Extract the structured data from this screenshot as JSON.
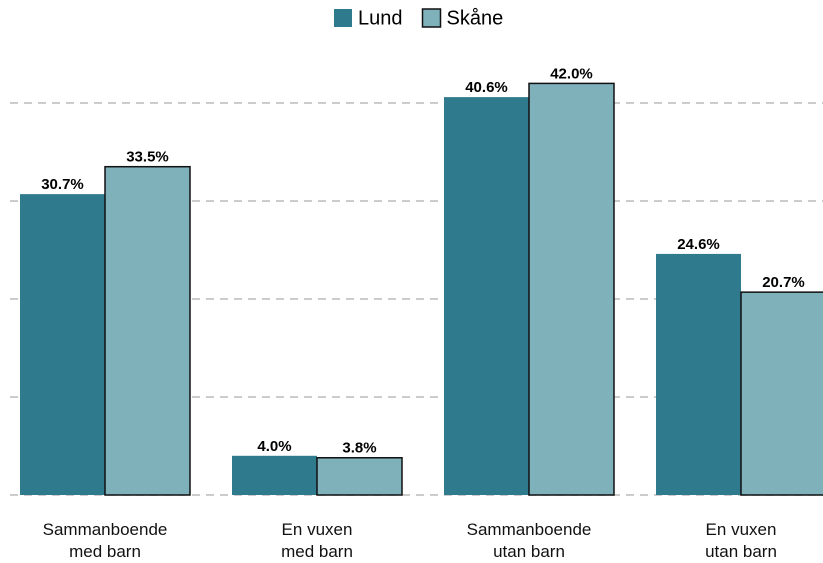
{
  "chart_data": {
    "type": "bar",
    "categories": [
      "Sammanboende\nmed barn",
      "En vuxen\nmed barn",
      "Sammanboende\nutan barn",
      "En vuxen\nutan barn"
    ],
    "series": [
      {
        "name": "Lund",
        "color": "#2f7a8c",
        "values": [
          30.7,
          4.0,
          40.6,
          24.6
        ],
        "value_labels": [
          "30.7%",
          "4.0%",
          "40.6%",
          "24.6%"
        ]
      },
      {
        "name": "Skåne",
        "color": "#7fb1bb",
        "values": [
          33.5,
          3.8,
          42.0,
          20.7
        ],
        "value_labels": [
          "33.5%",
          "3.8%",
          "42.0%",
          "20.7%"
        ]
      }
    ],
    "ylim": [
      0,
      45
    ],
    "yticks": [
      0,
      10,
      20,
      30,
      40
    ],
    "grid": true,
    "legend": "top"
  }
}
